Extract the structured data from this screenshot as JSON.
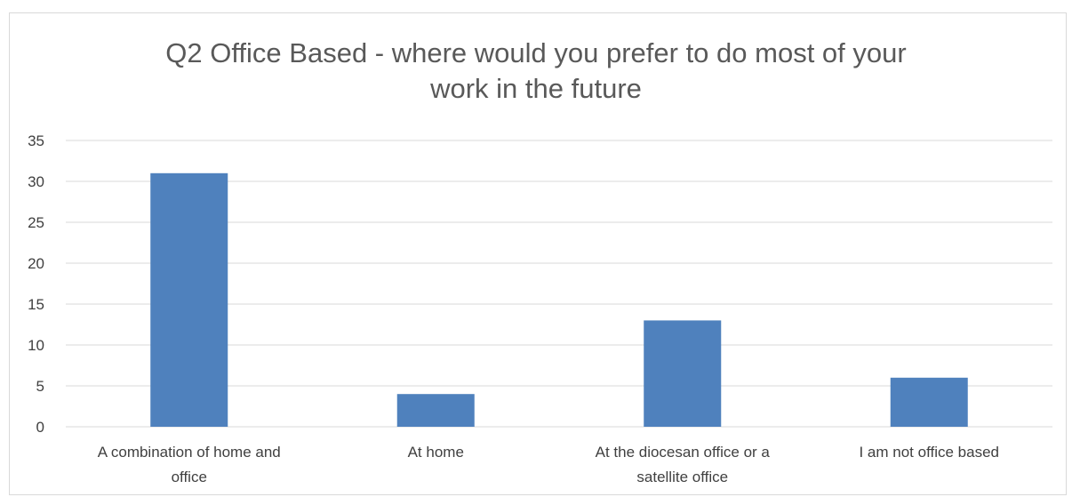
{
  "chart_data": {
    "type": "bar",
    "title_lines": [
      "Q2 Office Based - where would you prefer to do most of your",
      "work in the future"
    ],
    "categories": [
      [
        "A combination of home and",
        "office"
      ],
      [
        "At home"
      ],
      [
        "At the diocesan office or a",
        "satellite office"
      ],
      [
        "I am not office based"
      ]
    ],
    "values": [
      31,
      4,
      13,
      6
    ],
    "ylim": [
      0,
      35
    ],
    "yticks": [
      0,
      5,
      10,
      15,
      20,
      25,
      30,
      35
    ],
    "grid": true,
    "colors": {
      "bar": "#4F81BD",
      "grid": "#d9d9d9",
      "text": "#595959"
    }
  }
}
